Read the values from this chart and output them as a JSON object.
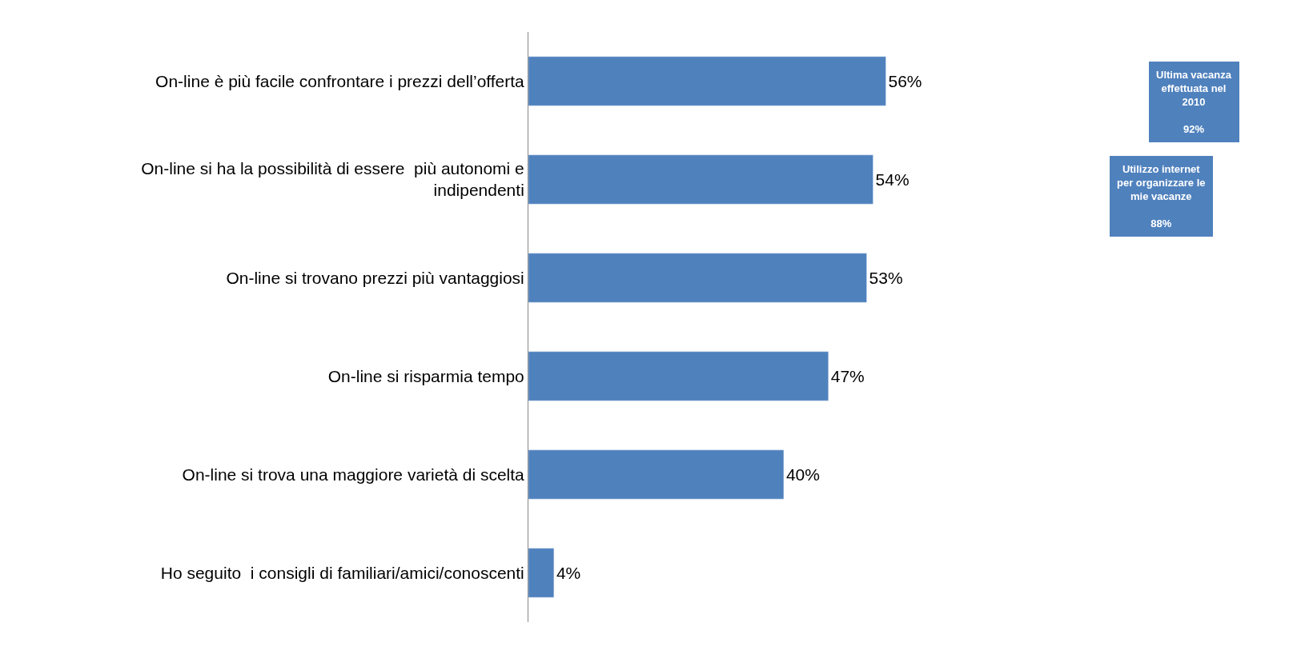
{
  "chart_data": {
    "type": "bar",
    "orientation": "horizontal",
    "categories": [
      "On-line è più facile confrontare i prezzi dell’offerta",
      "On-line si ha la possibilità di essere  più autonomi e indipendenti",
      "On-line si trovano prezzi più vantaggiosi",
      "On-line si risparmia tempo",
      "On-line si trova una maggiore varietà di scelta",
      "Ho seguito  i consigli di familiari/amici/conoscenti"
    ],
    "values": [
      56,
      54,
      53,
      47,
      40,
      4
    ],
    "value_labels": [
      "56%",
      "54%",
      "53%",
      "47%",
      "40%",
      "4%"
    ],
    "color": "#4f81bd",
    "annotations": [
      "Ultima vacanza effettuata nel 2010\n92%",
      "Utilizzo internet per organizzare le mie vacanze\n88%"
    ],
    "legend": false
  }
}
